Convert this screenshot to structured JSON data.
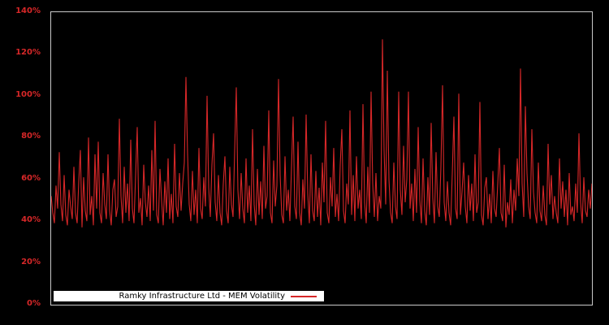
{
  "chart_data": {
    "type": "line",
    "title": "",
    "xlabel": "",
    "ylabel": "",
    "ylim": [
      0,
      140
    ],
    "grid": false,
    "background_color": "#000000",
    "plot_border_color": "#c9c9c9",
    "tick_label_color": "#d62728",
    "legend_position": "bottom-left-inside",
    "legend_background": "#ffffff",
    "yticks": [
      {
        "label": "0%",
        "value": 0
      },
      {
        "label": "20%",
        "value": 20
      },
      {
        "label": "40%",
        "value": 40
      },
      {
        "label": "60%",
        "value": 60
      },
      {
        "label": "80%",
        "value": 80
      },
      {
        "label": "100%",
        "value": 100
      },
      {
        "label": "120%",
        "value": 120
      },
      {
        "label": "140%",
        "value": 140
      }
    ],
    "series": [
      {
        "name": "Ramky Infrastructure Ltd - MEM Volatility",
        "color": "#d62728",
        "unit": "percent",
        "values": [
          52,
          44,
          39,
          57,
          46,
          73,
          48,
          40,
          62,
          43,
          38,
          55,
          47,
          41,
          66,
          44,
          39,
          59,
          74,
          37,
          61,
          45,
          40,
          80,
          43,
          52,
          38,
          72,
          46,
          78,
          44,
          39,
          63,
          48,
          41,
          72,
          45,
          38,
          55,
          60,
          42,
          47,
          89,
          52,
          39,
          66,
          44,
          58,
          40,
          79,
          46,
          39,
          62,
          85,
          44,
          51,
          38,
          67,
          49,
          42,
          57,
          40,
          74,
          45,
          88,
          43,
          39,
          65,
          50,
          38,
          59,
          44,
          70,
          41,
          53,
          39,
          77,
          47,
          42,
          63,
          45,
          58,
          68,
          109,
          72,
          48,
          40,
          64,
          43,
          55,
          39,
          75,
          46,
          41,
          61,
          47,
          100,
          56,
          42,
          67,
          82,
          49,
          40,
          62,
          44,
          38,
          58,
          71,
          45,
          39,
          66,
          48,
          42,
          74,
          104,
          55,
          41,
          63,
          46,
          39,
          70,
          44,
          57,
          40,
          84,
          48,
          38,
          65,
          43,
          59,
          41,
          76,
          46,
          52,
          93,
          44,
          39,
          69,
          47,
          57,
          108,
          62,
          43,
          39,
          71,
          45,
          55,
          40,
          66,
          90,
          47,
          41,
          78,
          44,
          38,
          60,
          46,
          91,
          53,
          39,
          72,
          45,
          40,
          64,
          42,
          56,
          38,
          68,
          49,
          88,
          44,
          39,
          61,
          47,
          75,
          42,
          53,
          40,
          67,
          84,
          45,
          39,
          58,
          48,
          93,
          43,
          62,
          40,
          71,
          46,
          55,
          41,
          96,
          49,
          39,
          66,
          44,
          102,
          58,
          42,
          63,
          40,
          52,
          46,
          127,
          74,
          48,
          112,
          60,
          44,
          39,
          68,
          47,
          41,
          102,
          55,
          43,
          76,
          49,
          60,
          102,
          46,
          58,
          40,
          65,
          44,
          85,
          50,
          39,
          70,
          45,
          38,
          61,
          43,
          87,
          51,
          39,
          73,
          47,
          42,
          66,
          105,
          49,
          40,
          59,
          44,
          38,
          63,
          90,
          46,
          41,
          101,
          43,
          54,
          68,
          47,
          39,
          62,
          45,
          58,
          40,
          72,
          44,
          49,
          97,
          43,
          38,
          56,
          61,
          41,
          53,
          39,
          64,
          46,
          42,
          58,
          75,
          44,
          40,
          67,
          37,
          49,
          43,
          60,
          39,
          55,
          45,
          70,
          52,
          113,
          58,
          42,
          95,
          63,
          47,
          41,
          84,
          54,
          44,
          39,
          68,
          45,
          40,
          57,
          43,
          38,
          77,
          48,
          62,
          41,
          52,
          44,
          39,
          70,
          46,
          59,
          42,
          55,
          38,
          63,
          43,
          47,
          40,
          58,
          44,
          82,
          49,
          39,
          61,
          45,
          42,
          55,
          46,
          58
        ]
      }
    ]
  },
  "legend": {
    "label": "Ramky Infrastructure Ltd - MEM Volatility"
  }
}
